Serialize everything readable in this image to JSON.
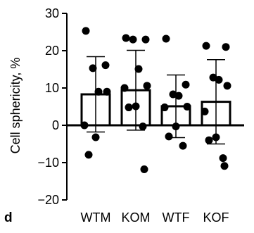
{
  "panel_label": "d",
  "chart_data": {
    "type": "bar",
    "categories": [
      "WTM",
      "KOM",
      "WTF",
      "KOF"
    ],
    "values": [
      8.3,
      9.4,
      5.1,
      6.3
    ],
    "error_bars": [
      10.1,
      10.7,
      8.4,
      11.3
    ],
    "points": [
      [
        25.3,
        16.1,
        15.3,
        9.0,
        9.0,
        0.0,
        -3.2,
        -7.9
      ],
      [
        23.4,
        23.0,
        23.0,
        15.1,
        10.6,
        10.0,
        5.1,
        4.8,
        -0.3,
        -11.8
      ],
      [
        23.2,
        10.9,
        8.3,
        7.9,
        5.0,
        4.8,
        -0.3,
        -3.0,
        -5.5
      ],
      [
        21.3,
        21.0,
        12.8,
        12.2,
        10.6,
        3.7,
        -3.2,
        -4.0,
        -8.8,
        -10.9
      ]
    ],
    "title": "",
    "xlabel": "",
    "ylabel": "Cell sphericity, %",
    "ylim": [
      -20,
      30
    ],
    "yticks": [
      -20,
      -10,
      0,
      10,
      20,
      30
    ],
    "ytick_labels": [
      "−20",
      "−10",
      "0",
      "10",
      "20",
      "30"
    ],
    "grid": false,
    "legend": "none",
    "colors": {
      "bar_fill": "#ffffff",
      "bar_stroke": "#000000",
      "point": "#000000",
      "axis": "#000000"
    }
  }
}
